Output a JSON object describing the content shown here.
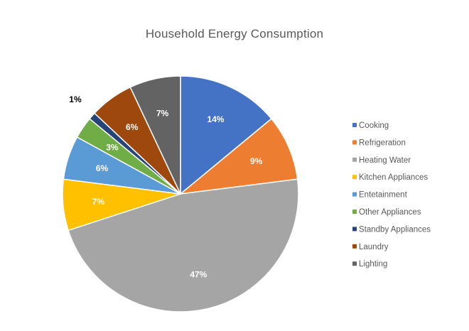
{
  "chart_data": {
    "type": "pie",
    "title": "Household Energy Consumption",
    "legend_position": "right",
    "slices": [
      {
        "label": "Cooking",
        "value": 14,
        "display": "14%",
        "color": "#4472C4"
      },
      {
        "label": "Refrigeration",
        "value": 9,
        "display": "9%",
        "color": "#ED7D31"
      },
      {
        "label": "Heating Water",
        "value": 47,
        "display": "47%",
        "color": "#A5A5A5"
      },
      {
        "label": "Kitchen Appliances",
        "value": 7,
        "display": "7%",
        "color": "#FFC000"
      },
      {
        "label": "Entetainment",
        "value": 6,
        "display": "6%",
        "color": "#5B9BD5"
      },
      {
        "label": "Other Appliances",
        "value": 3,
        "display": "3%",
        "color": "#70AD47"
      },
      {
        "label": "Standby Appliances",
        "value": 1,
        "display": "1%",
        "color": "#264478"
      },
      {
        "label": "Laundry",
        "value": 6,
        "display": "6%",
        "color": "#9E480E"
      },
      {
        "label": "Lighting",
        "value": 7,
        "display": "7%",
        "color": "#636363"
      }
    ]
  }
}
